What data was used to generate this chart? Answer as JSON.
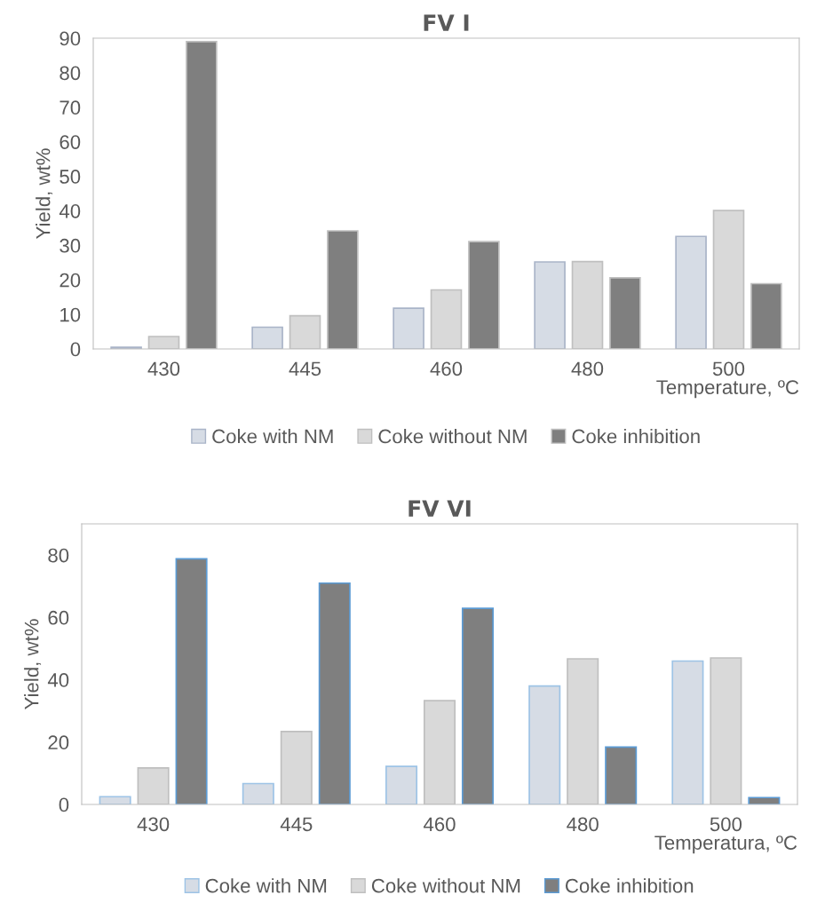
{
  "chart_data": [
    {
      "type": "bar",
      "title": "FV I",
      "xlabel": "Temperature, ºC",
      "ylabel": "Yield, wt%",
      "categories": [
        "430",
        "445",
        "460",
        "480",
        "500"
      ],
      "ylim": [
        0,
        90
      ],
      "yticks": [
        0,
        10,
        20,
        30,
        40,
        50,
        60,
        70,
        80,
        90
      ],
      "grid": false,
      "legend": "bottom",
      "series": [
        {
          "name": "Coke with NM",
          "color": "#d6dce5",
          "values": [
            0.5,
            6.3,
            11.8,
            25.2,
            32.6
          ]
        },
        {
          "name": "Coke without NM",
          "color": "#d9d9d9",
          "values": [
            3.6,
            9.6,
            17.1,
            25.3,
            40.1
          ]
        },
        {
          "name": "Coke inhibition",
          "color": "#7f7f7f",
          "values": [
            89,
            34.2,
            31.1,
            20.6,
            18.9
          ]
        }
      ]
    },
    {
      "type": "bar",
      "title": "FV VI",
      "xlabel": "Temperatura, ºC",
      "ylabel": "Yield, wt%",
      "categories": [
        "430",
        "445",
        "460",
        "480",
        "500"
      ],
      "ylim": [
        0,
        90
      ],
      "yticks": [
        0,
        20,
        40,
        60,
        80
      ],
      "grid": false,
      "legend": "bottom",
      "series": [
        {
          "name": "Coke with NM",
          "color": "#d6dce5",
          "values": [
            2.5,
            6.7,
            12.2,
            38.0,
            46.0
          ]
        },
        {
          "name": "Coke without NM",
          "color": "#d9d9d9",
          "values": [
            11.7,
            23.4,
            33.3,
            46.7,
            47.0
          ]
        },
        {
          "name": "Coke inhibition",
          "color": "#7f7f7f",
          "values": [
            78.8,
            71.0,
            62.9,
            18.4,
            2.2
          ]
        }
      ]
    }
  ]
}
